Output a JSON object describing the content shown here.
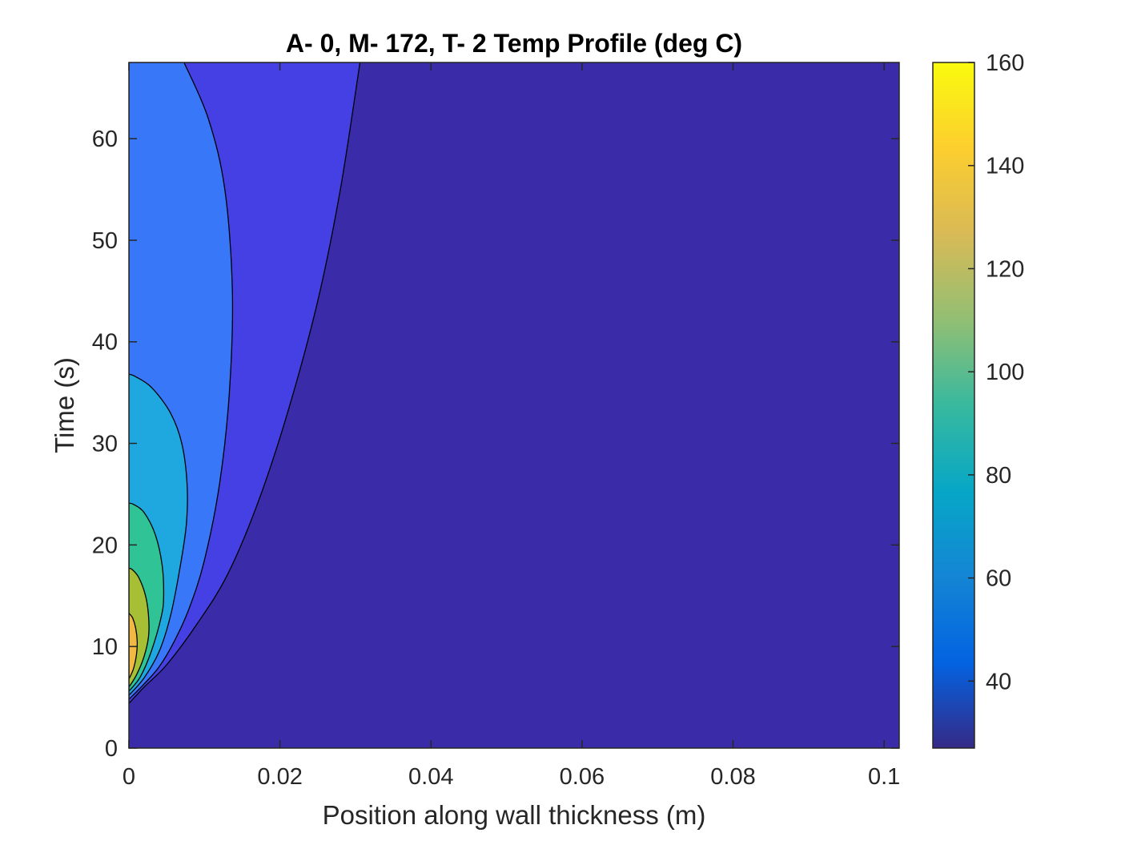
{
  "chart_data": {
    "type": "contourf",
    "title": "A- 0, M- 172, T- 2 Temp Profile (deg C)",
    "xlabel": "Position along wall thickness (m)",
    "ylabel": "Time (s)",
    "xlim": [
      0,
      0.102
    ],
    "ylim": [
      0,
      67.5
    ],
    "x_ticks": [
      0,
      0.02,
      0.04,
      0.06,
      0.08,
      0.1
    ],
    "x_tick_labels": [
      "0",
      "0.02",
      "0.04",
      "0.06",
      "0.08",
      "0.1"
    ],
    "y_ticks": [
      0,
      10,
      20,
      30,
      40,
      50,
      60
    ],
    "y_tick_labels": [
      "0",
      "10",
      "20",
      "30",
      "40",
      "50",
      "60"
    ],
    "background_level_color": "#3A2CA8",
    "levels": [
      {
        "level": 50,
        "color": "#4540E3",
        "points": [
          [
            0,
            4.4
          ],
          [
            0.002,
            6.0
          ],
          [
            0.005,
            8.2
          ],
          [
            0.009,
            12.2
          ],
          [
            0.013,
            17.0
          ],
          [
            0.017,
            24.0
          ],
          [
            0.021,
            33.0
          ],
          [
            0.025,
            44.0
          ],
          [
            0.028,
            55.0
          ],
          [
            0.0306,
            67.5
          ]
        ]
      },
      {
        "level": 60,
        "color": "#3878F8",
        "points": [
          [
            0,
            4.8
          ],
          [
            0.002,
            6.3
          ],
          [
            0.004,
            8.0
          ],
          [
            0.006,
            10.5
          ],
          [
            0.008,
            13.8
          ],
          [
            0.01,
            18.5
          ],
          [
            0.012,
            26.0
          ],
          [
            0.0133,
            35.0
          ],
          [
            0.0137,
            45.0
          ],
          [
            0.0127,
            55.0
          ],
          [
            0.0105,
            62.0
          ],
          [
            0.0073,
            67.5
          ]
        ]
      },
      {
        "level": 75,
        "color": "#1FA8E0",
        "points": [
          [
            0,
            5.2
          ],
          [
            0.002,
            6.9
          ],
          [
            0.004,
            9.5
          ],
          [
            0.0055,
            13.0
          ],
          [
            0.0067,
            17.5
          ],
          [
            0.0076,
            22.0
          ],
          [
            0.0077,
            26.0
          ],
          [
            0.007,
            30.0
          ],
          [
            0.0055,
            33.0
          ],
          [
            0.003,
            35.5
          ],
          [
            0.0008,
            36.6
          ],
          [
            0,
            36.8
          ]
        ]
      },
      {
        "level": 90,
        "color": "#2FC396",
        "points": [
          [
            0,
            5.6
          ],
          [
            0.0015,
            7.0
          ],
          [
            0.003,
            9.6
          ],
          [
            0.0043,
            13.0
          ],
          [
            0.0046,
            15.0
          ],
          [
            0.0044,
            18.0
          ],
          [
            0.0035,
            21.0
          ],
          [
            0.002,
            23.2
          ],
          [
            0.0006,
            24.0
          ],
          [
            0,
            24.1
          ]
        ]
      },
      {
        "level": 105,
        "color": "#A7BF35",
        "points": [
          [
            0,
            6.0
          ],
          [
            0.001,
            7.2
          ],
          [
            0.002,
            9.0
          ],
          [
            0.0026,
            11.0
          ],
          [
            0.0026,
            13.0
          ],
          [
            0.0022,
            15.0
          ],
          [
            0.0013,
            16.8
          ],
          [
            0.0004,
            17.6
          ],
          [
            0,
            17.7
          ]
        ]
      },
      {
        "level": 120,
        "color": "#F1B844",
        "points": [
          [
            0,
            6.8
          ],
          [
            0.0006,
            7.8
          ],
          [
            0.001,
            9.2
          ],
          [
            0.0011,
            10.5
          ],
          [
            0.0009,
            11.8
          ],
          [
            0.0005,
            12.8
          ],
          [
            0.0001,
            13.2
          ],
          [
            0,
            13.3
          ]
        ]
      }
    ],
    "colorbar": {
      "range": [
        27,
        160
      ],
      "ticks": [
        40,
        60,
        80,
        100,
        120,
        140,
        160
      ],
      "tick_labels": [
        "40",
        "60",
        "80",
        "100",
        "120",
        "140",
        "160"
      ],
      "colormap": "parula",
      "colormap_stops": [
        "#352A87",
        "#0363E1",
        "#1485D4",
        "#06A7C6",
        "#38B99E",
        "#92BF73",
        "#D9BA56",
        "#FCCE2E",
        "#F9FB0E"
      ]
    }
  }
}
